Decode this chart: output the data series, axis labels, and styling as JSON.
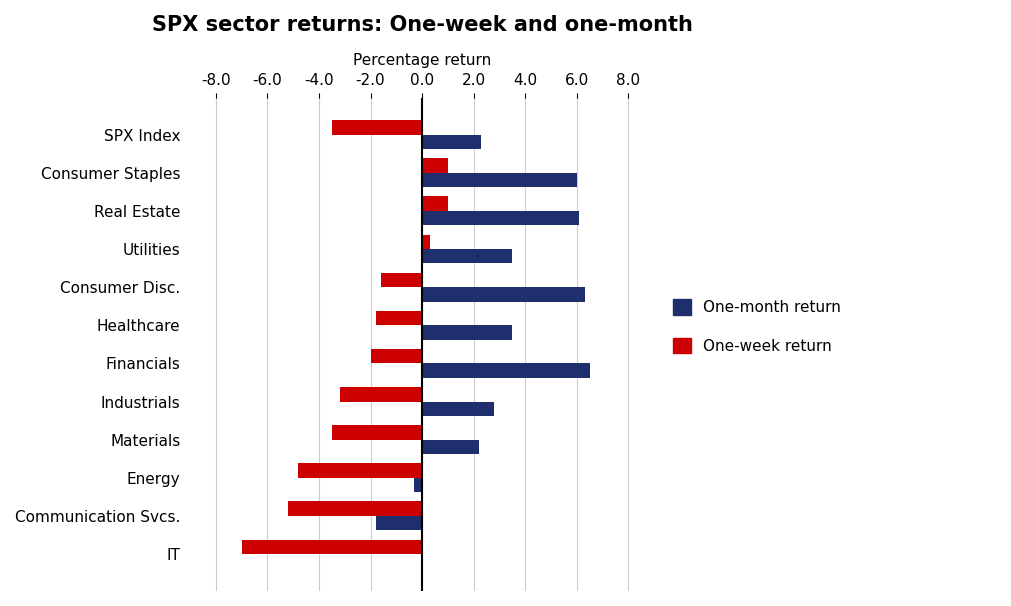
{
  "title": "SPX sector returns: One-week and one-month",
  "xlabel": "Percentage return",
  "categories": [
    "SPX Index",
    "Consumer Staples",
    "Real Estate",
    "Utilities",
    "Consumer Disc.",
    "Healthcare",
    "Financials",
    "Industrials",
    "Materials",
    "Energy",
    "Communication Svcs.",
    "IT"
  ],
  "one_month_return": [
    2.3,
    6.0,
    6.1,
    3.5,
    6.3,
    3.5,
    6.5,
    2.8,
    2.2,
    -0.3,
    -1.8,
    0.0
  ],
  "one_week_return": [
    -3.5,
    1.0,
    1.0,
    0.3,
    -1.6,
    -1.8,
    -2.0,
    -3.2,
    -3.5,
    -4.8,
    -5.2,
    -7.0
  ],
  "one_month_color": "#1f2f6e",
  "one_week_color": "#cc0000",
  "background_color": "#ffffff",
  "xlim": [
    -9.0,
    9.0
  ],
  "xticks": [
    -8.0,
    -6.0,
    -4.0,
    -2.0,
    0.0,
    2.0,
    4.0,
    6.0,
    8.0
  ],
  "bar_height": 0.38,
  "title_fontsize": 15,
  "label_fontsize": 11,
  "tick_fontsize": 11,
  "legend_fontsize": 11
}
